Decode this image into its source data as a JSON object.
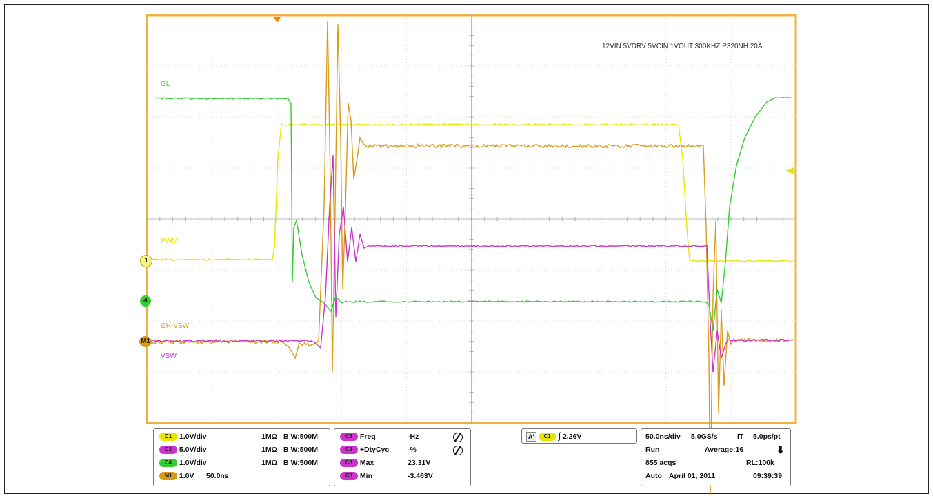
{
  "header": {
    "annotation": "12VIN 5VDRV 5VCIN 1VOUT 300KHZ P320NH 20A"
  },
  "traces": {
    "gl": {
      "label": "GL",
      "color": "#33cc33"
    },
    "pwm": {
      "label": "PWM",
      "color": "#e6e600"
    },
    "ghvsw": {
      "label": "GH-VSW",
      "color": "#d99a1a"
    },
    "vsw": {
      "label": "VSW",
      "color": "#cc33cc"
    }
  },
  "markers": {
    "ch1": "1",
    "ch4": "4",
    "m1": "M1"
  },
  "channels": [
    {
      "tag": "C1",
      "color": "#e6e600",
      "scale": "1.0V/div",
      "impedance": "1MΩ",
      "bw": "B W:500M"
    },
    {
      "tag": "C3",
      "color": "#cc33cc",
      "scale": "5.0V/div",
      "impedance": "1MΩ",
      "bw": "B W:500M"
    },
    {
      "tag": "C4",
      "color": "#33cc33",
      "scale": "1.0V/div",
      "impedance": "1MΩ",
      "bw": "B W:500M"
    },
    {
      "tag": "M1",
      "color": "#d99a1a",
      "scale": "1.0V",
      "impedance": "50.0ns",
      "bw": ""
    }
  ],
  "measurements": [
    {
      "tag": "C3",
      "name": "Freq",
      "value": "-Hz",
      "warn": true
    },
    {
      "tag": "C3",
      "name": "+DtyCyc",
      "value": "-%",
      "warn": true
    },
    {
      "tag": "C3",
      "name": "Max",
      "value": "23.31V",
      "warn": false
    },
    {
      "tag": "C3",
      "name": "Min",
      "value": "-3.463V",
      "warn": false
    }
  ],
  "trigger": {
    "mode": "A'",
    "source": "C1",
    "level": "2.26V"
  },
  "acquisition": {
    "timebase": "50.0ns/div",
    "sample_rate": "5.0GS/s",
    "it": "IT",
    "resolution": "5.0ps/pt",
    "state": "Run",
    "average": "Average:16",
    "acqs": "855 acqs",
    "record_length": "RL:100k",
    "trigger_mode": "Auto",
    "date": "April 01, 2011",
    "time": "09:39:39"
  }
}
